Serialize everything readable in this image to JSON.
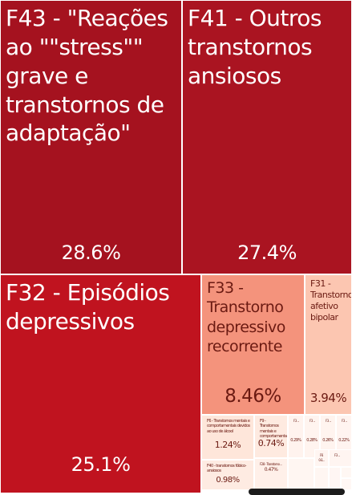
{
  "chart_data": {
    "type": "treemap",
    "tiles": [
      {
        "label": "F43 - \"Reações ao \"\"stress\"\" grave e transtornos de adaptação\"",
        "value_label": "28.6%",
        "value": 28.6,
        "color": "#a5121f",
        "text_color": "#ffffff"
      },
      {
        "label": "F41 - Outros transtornos ansiosos",
        "value_label": "27.4%",
        "value": 27.4,
        "color": "#aa1421",
        "text_color": "#ffffff"
      },
      {
        "label": "F32 - Episódios depressivos",
        "value_label": "25.1%",
        "value": 25.1,
        "color": "#c0131f",
        "text_color": "#ffffff"
      },
      {
        "label": "F33 - Transtorno depressivo recorrente",
        "value_label": "8.46%",
        "value": 8.46,
        "color": "#f4937c",
        "text_color": "#6b1a12"
      },
      {
        "label": "F31 - Transtorno afetivo bipolar",
        "value_label": "3.94%",
        "value": 3.94,
        "color": "#fcc6b1",
        "text_color": "#6b1a12"
      },
      {
        "label": "F6 - Transtornos mentais e comportamentais devidos ao uso de álcool",
        "value_label": "1.24%",
        "value": 1.24,
        "color": "#fee6da",
        "text_color": "#6b1a12"
      },
      {
        "label": "F9 - Transtornos mentais e comportamentais ...",
        "value_label": "0.74%",
        "value": 0.74,
        "color": "#feeae0",
        "text_color": "#6b1a12"
      },
      {
        "label": "F40 - transtornos fóbico-ansiosos",
        "value_label": "0.98%",
        "value": 0.98,
        "color": "#feebe2",
        "text_color": "#6b1a12"
      },
      {
        "label": "F28 - Transtorno ...",
        "value_label": "0.47%",
        "value": 0.47,
        "color": "#fff0e9",
        "text_color": "#6b1a12"
      },
      {
        "label": "F3 ...",
        "value_label": "0.29%",
        "value": 0.29,
        "color": "#fff3ee",
        "text_color": "#6b1a12"
      },
      {
        "label": "F3 ...",
        "value_label": "0.28%",
        "value": 0.28,
        "color": "#fff4ef",
        "text_color": "#6b1a12"
      },
      {
        "label": "F3 ...",
        "value_label": "0.26%",
        "value": 0.26,
        "color": "#fff4ef",
        "text_color": "#6b1a12"
      },
      {
        "label": "F3 ...",
        "value_label": "0.22%",
        "value": 0.22,
        "color": "#fff4f0",
        "text_color": "#6b1a12"
      },
      {
        "label": "F6 ...",
        "value_label": "0.1...",
        "value": 0.16,
        "color": "#fff5f1",
        "text_color": "#6b1a12"
      },
      {
        "label": "F3 ...",
        "value_label": "",
        "value": 0.12,
        "color": "#fff5f1",
        "text_color": "#6b1a12"
      },
      {
        "label": "",
        "value_label": "",
        "value": 0.1,
        "color": "#fff6f2",
        "text_color": "#6b1a12"
      },
      {
        "label": "",
        "value_label": "",
        "value": 0.08,
        "color": "#fff6f2",
        "text_color": "#6b1a12"
      },
      {
        "label": "",
        "value_label": "",
        "value": 0.07,
        "color": "#fff6f3",
        "text_color": "#6b1a12"
      },
      {
        "label": "",
        "value_label": "",
        "value": 0.06,
        "color": "#fff7f3",
        "text_color": "#6b1a12"
      },
      {
        "label": "",
        "value_label": "",
        "value": 0.05,
        "color": "#fff7f4",
        "text_color": "#6b1a12"
      }
    ]
  }
}
